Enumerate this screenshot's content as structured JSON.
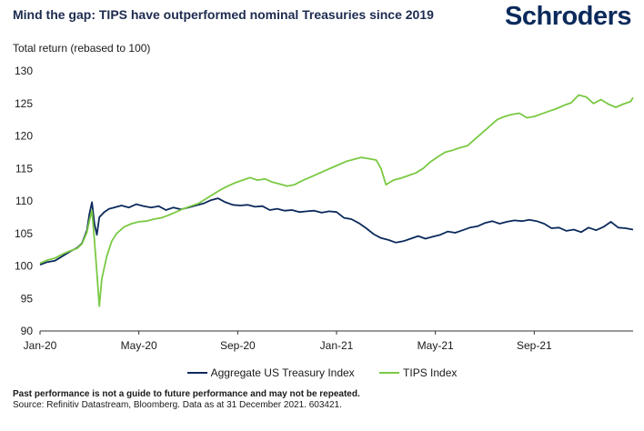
{
  "header": {
    "title": "Mind the gap: TIPS have outperformed nominal Treasuries since 2019",
    "logo_text": "Schroders"
  },
  "colors": {
    "treasury": "#0b2a5b",
    "tips": "#7ac943",
    "axis": "#333333"
  },
  "chart_data": {
    "type": "line",
    "title": "Mind the gap: TIPS have outperformed nominal Treasuries since 2019",
    "ylabel": "Total return (rebased to 100)",
    "xlabel": "",
    "ylim": [
      90,
      130
    ],
    "yticks": [
      90,
      95,
      100,
      105,
      110,
      115,
      120,
      125,
      130
    ],
    "xlim": [
      0,
      24
    ],
    "xticks": [
      {
        "x": 0,
        "label": "Jan-20"
      },
      {
        "x": 4,
        "label": "May-20"
      },
      {
        "x": 8,
        "label": "Sep-20"
      },
      {
        "x": 12,
        "label": "Jan-21"
      },
      {
        "x": 16,
        "label": "May-21"
      },
      {
        "x": 20,
        "label": "Sep-21"
      }
    ],
    "grid": false,
    "legend_position": "bottom",
    "series": [
      {
        "name": "Aggregate US Treasury Index",
        "color_key": "treasury",
        "points": [
          [
            0.0,
            100.2
          ],
          [
            0.3,
            100.6
          ],
          [
            0.6,
            100.8
          ],
          [
            0.9,
            101.5
          ],
          [
            1.2,
            102.2
          ],
          [
            1.5,
            102.8
          ],
          [
            1.7,
            103.5
          ],
          [
            1.9,
            105.5
          ],
          [
            2.0,
            108.0
          ],
          [
            2.1,
            109.8
          ],
          [
            2.2,
            106.5
          ],
          [
            2.3,
            104.8
          ],
          [
            2.4,
            107.5
          ],
          [
            2.6,
            108.3
          ],
          [
            2.8,
            108.8
          ],
          [
            3.0,
            109.0
          ],
          [
            3.3,
            109.3
          ],
          [
            3.6,
            109.0
          ],
          [
            3.9,
            109.5
          ],
          [
            4.2,
            109.2
          ],
          [
            4.5,
            109.0
          ],
          [
            4.8,
            109.2
          ],
          [
            5.1,
            108.6
          ],
          [
            5.4,
            109.0
          ],
          [
            5.7,
            108.7
          ],
          [
            6.0,
            109.0
          ],
          [
            6.3,
            109.3
          ],
          [
            6.6,
            109.6
          ],
          [
            6.9,
            110.1
          ],
          [
            7.2,
            110.4
          ],
          [
            7.5,
            109.8
          ],
          [
            7.8,
            109.4
          ],
          [
            8.1,
            109.3
          ],
          [
            8.4,
            109.4
          ],
          [
            8.7,
            109.1
          ],
          [
            9.0,
            109.2
          ],
          [
            9.3,
            108.6
          ],
          [
            9.6,
            108.8
          ],
          [
            9.9,
            108.5
          ],
          [
            10.2,
            108.6
          ],
          [
            10.5,
            108.3
          ],
          [
            10.8,
            108.4
          ],
          [
            11.1,
            108.5
          ],
          [
            11.4,
            108.2
          ],
          [
            11.7,
            108.4
          ],
          [
            12.0,
            108.3
          ],
          [
            12.3,
            107.4
          ],
          [
            12.6,
            107.2
          ],
          [
            12.9,
            106.6
          ],
          [
            13.2,
            105.8
          ],
          [
            13.5,
            104.9
          ],
          [
            13.8,
            104.3
          ],
          [
            14.1,
            104.0
          ],
          [
            14.4,
            103.6
          ],
          [
            14.7,
            103.8
          ],
          [
            15.0,
            104.2
          ],
          [
            15.3,
            104.6
          ],
          [
            15.6,
            104.2
          ],
          [
            15.9,
            104.5
          ],
          [
            16.2,
            104.8
          ],
          [
            16.5,
            105.3
          ],
          [
            16.8,
            105.1
          ],
          [
            17.1,
            105.5
          ],
          [
            17.4,
            105.9
          ],
          [
            17.7,
            106.1
          ],
          [
            18.0,
            106.6
          ],
          [
            18.3,
            106.9
          ],
          [
            18.6,
            106.5
          ],
          [
            18.9,
            106.8
          ],
          [
            19.2,
            107.0
          ],
          [
            19.5,
            106.9
          ],
          [
            19.8,
            107.1
          ],
          [
            20.1,
            106.9
          ],
          [
            20.4,
            106.5
          ],
          [
            20.7,
            105.8
          ],
          [
            21.0,
            105.9
          ],
          [
            21.3,
            105.4
          ],
          [
            21.6,
            105.6
          ],
          [
            21.9,
            105.2
          ],
          [
            22.2,
            105.9
          ],
          [
            22.5,
            105.5
          ],
          [
            22.8,
            106.0
          ],
          [
            23.1,
            106.8
          ],
          [
            23.4,
            105.9
          ],
          [
            23.7,
            105.8
          ],
          [
            24.0,
            105.6
          ]
        ]
      },
      {
        "name": "TIPS Index",
        "color_key": "tips",
        "points": [
          [
            0.0,
            100.4
          ],
          [
            0.3,
            100.9
          ],
          [
            0.6,
            101.2
          ],
          [
            0.9,
            101.8
          ],
          [
            1.2,
            102.3
          ],
          [
            1.5,
            102.7
          ],
          [
            1.7,
            103.4
          ],
          [
            1.9,
            105.2
          ],
          [
            2.0,
            107.0
          ],
          [
            2.1,
            108.5
          ],
          [
            2.2,
            104.0
          ],
          [
            2.3,
            99.0
          ],
          [
            2.4,
            93.8
          ],
          [
            2.5,
            98.0
          ],
          [
            2.7,
            101.5
          ],
          [
            2.9,
            103.8
          ],
          [
            3.1,
            105.0
          ],
          [
            3.4,
            106.0
          ],
          [
            3.7,
            106.5
          ],
          [
            4.0,
            106.8
          ],
          [
            4.3,
            106.9
          ],
          [
            4.6,
            107.2
          ],
          [
            4.9,
            107.4
          ],
          [
            5.2,
            107.8
          ],
          [
            5.5,
            108.3
          ],
          [
            5.8,
            108.8
          ],
          [
            6.1,
            109.2
          ],
          [
            6.4,
            109.6
          ],
          [
            6.7,
            110.3
          ],
          [
            7.0,
            111.0
          ],
          [
            7.3,
            111.7
          ],
          [
            7.6,
            112.3
          ],
          [
            7.9,
            112.8
          ],
          [
            8.2,
            113.2
          ],
          [
            8.5,
            113.6
          ],
          [
            8.8,
            113.2
          ],
          [
            9.1,
            113.4
          ],
          [
            9.4,
            112.9
          ],
          [
            9.7,
            112.6
          ],
          [
            10.0,
            112.3
          ],
          [
            10.3,
            112.5
          ],
          [
            10.6,
            113.1
          ],
          [
            10.9,
            113.6
          ],
          [
            11.2,
            114.1
          ],
          [
            11.5,
            114.6
          ],
          [
            11.8,
            115.1
          ],
          [
            12.1,
            115.6
          ],
          [
            12.4,
            116.1
          ],
          [
            12.7,
            116.4
          ],
          [
            13.0,
            116.7
          ],
          [
            13.3,
            116.5
          ],
          [
            13.6,
            116.3
          ],
          [
            13.8,
            115.0
          ],
          [
            14.0,
            112.5
          ],
          [
            14.3,
            113.2
          ],
          [
            14.6,
            113.5
          ],
          [
            14.9,
            113.9
          ],
          [
            15.2,
            114.3
          ],
          [
            15.5,
            115.0
          ],
          [
            15.8,
            116.0
          ],
          [
            16.1,
            116.8
          ],
          [
            16.4,
            117.5
          ],
          [
            16.7,
            117.8
          ],
          [
            17.0,
            118.2
          ],
          [
            17.3,
            118.5
          ],
          [
            17.6,
            119.5
          ],
          [
            17.9,
            120.5
          ],
          [
            18.2,
            121.5
          ],
          [
            18.5,
            122.5
          ],
          [
            18.8,
            123.0
          ],
          [
            19.1,
            123.3
          ],
          [
            19.4,
            123.5
          ],
          [
            19.7,
            122.8
          ],
          [
            20.0,
            123.0
          ],
          [
            20.3,
            123.4
          ],
          [
            20.6,
            123.8
          ],
          [
            20.9,
            124.2
          ],
          [
            21.2,
            124.7
          ],
          [
            21.5,
            125.1
          ],
          [
            21.8,
            126.3
          ],
          [
            22.1,
            126.0
          ],
          [
            22.4,
            125.0
          ],
          [
            22.7,
            125.6
          ],
          [
            23.0,
            124.9
          ],
          [
            23.3,
            124.4
          ],
          [
            23.6,
            124.9
          ],
          [
            23.9,
            125.3
          ],
          [
            24.0,
            125.9
          ]
        ]
      }
    ]
  },
  "footer": {
    "disclaimer": "Past performance is not a guide to future performance and may not be repeated.",
    "source": "Source: Refinitiv Datastream, Bloomberg. Data as at 31 December 2021. 603421."
  }
}
